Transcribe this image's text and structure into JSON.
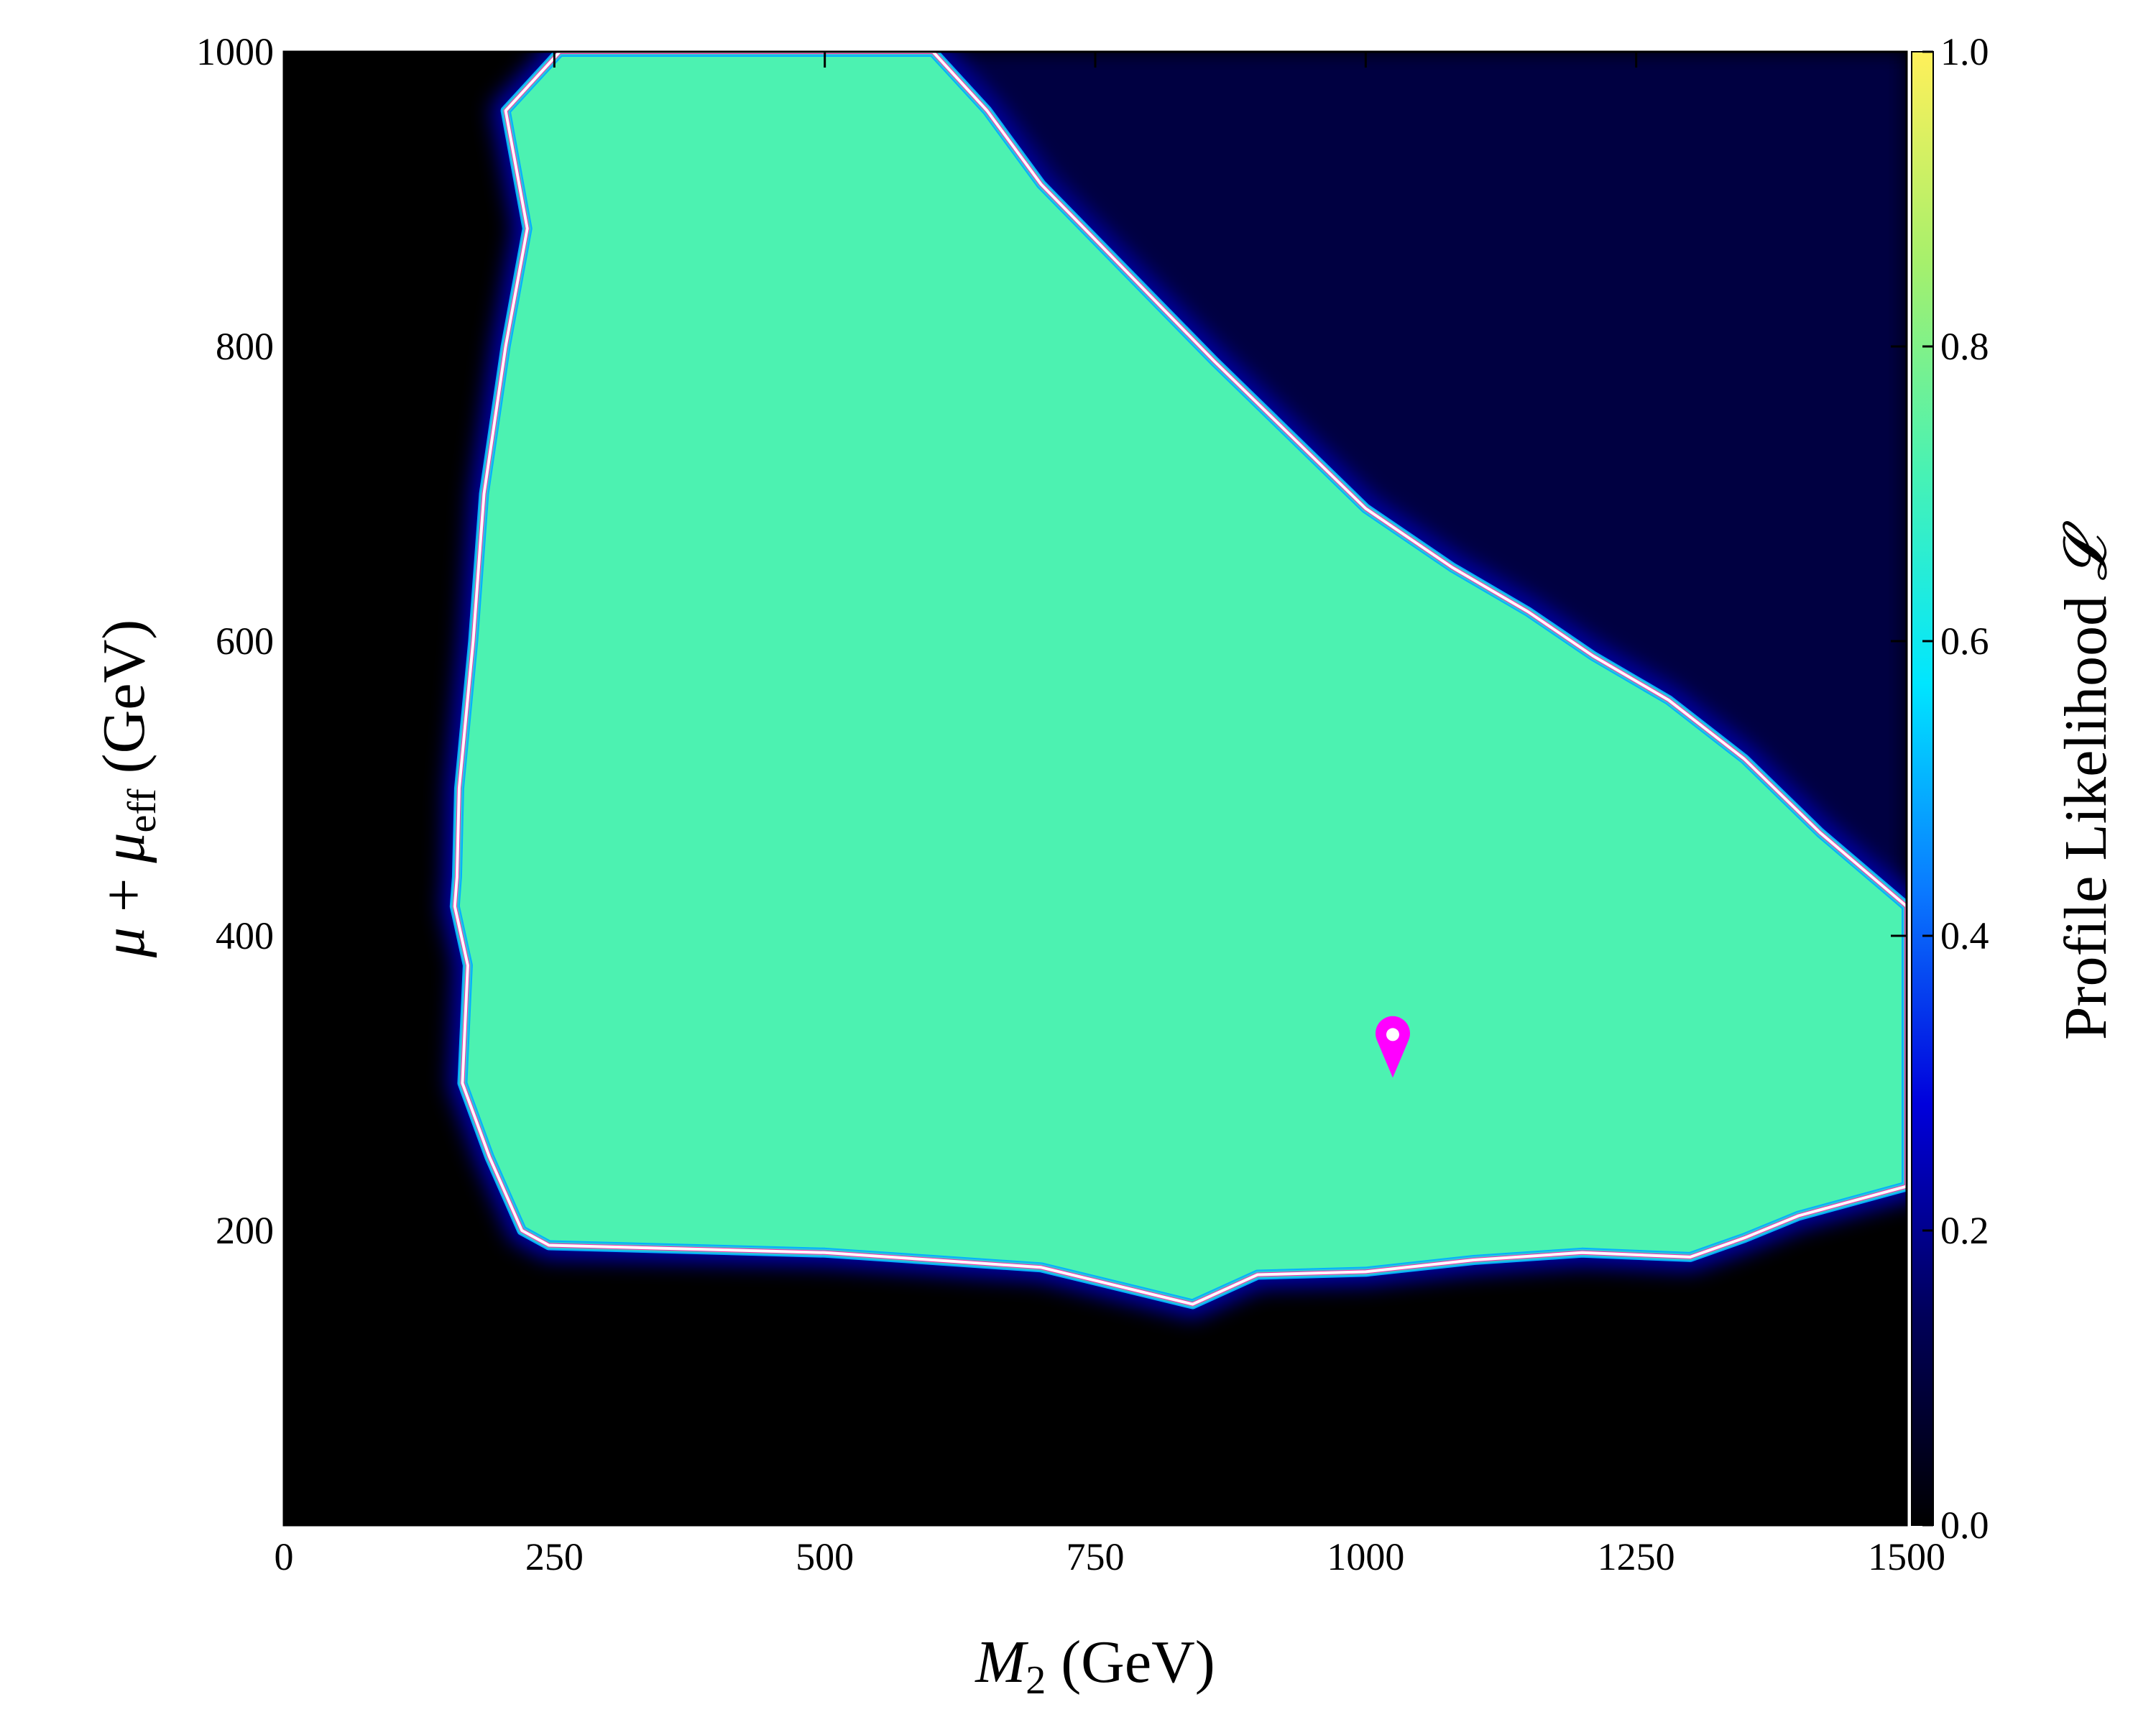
{
  "chart_data": {
    "type": "heatmap",
    "title": "",
    "xlabel": "M₂ (GeV)",
    "ylabel": "μ + μeff (GeV)",
    "colorbar_label": "Profile Likelihood 𝓛",
    "xlim": [
      0,
      1500
    ],
    "ylim": [
      0,
      1000
    ],
    "clim": [
      0.0,
      1.0
    ],
    "x_ticks": [
      "0",
      "250",
      "500",
      "750",
      "1000",
      "1250",
      "1500"
    ],
    "y_ticks": [
      "200",
      "400",
      "600",
      "800",
      "1000"
    ],
    "colorbar_ticks": [
      "0.0",
      "0.2",
      "0.4",
      "0.6",
      "0.8",
      "1.0"
    ],
    "colormap": [
      "#000000",
      "#00005a",
      "#0000dc",
      "#0a78ff",
      "#00e6ff",
      "#48f2b4",
      "#a6f06c",
      "#fff05a"
    ],
    "background_value": 0.0,
    "plateau_value": 0.72,
    "allowed_region_boundary": [
      [
        255,
        1000
      ],
      [
        205,
        960
      ],
      [
        225,
        880
      ],
      [
        205,
        800
      ],
      [
        185,
        700
      ],
      [
        175,
        600
      ],
      [
        162,
        500
      ],
      [
        160,
        440
      ],
      [
        158,
        420
      ],
      [
        170,
        380
      ],
      [
        165,
        300
      ],
      [
        190,
        250
      ],
      [
        220,
        200
      ],
      [
        245,
        190
      ],
      [
        500,
        185
      ],
      [
        600,
        180
      ],
      [
        700,
        175
      ],
      [
        840,
        150
      ],
      [
        900,
        170
      ],
      [
        1000,
        172
      ],
      [
        1100,
        180
      ],
      [
        1200,
        185
      ],
      [
        1300,
        182
      ],
      [
        1350,
        195
      ],
      [
        1400,
        210
      ],
      [
        1450,
        220
      ],
      [
        1500,
        230
      ],
      [
        1500,
        420
      ],
      [
        1420,
        470
      ],
      [
        1350,
        520
      ],
      [
        1280,
        560
      ],
      [
        1210,
        590
      ],
      [
        1150,
        620
      ],
      [
        1080,
        650
      ],
      [
        1000,
        690
      ],
      [
        930,
        740
      ],
      [
        860,
        790
      ],
      [
        780,
        850
      ],
      [
        700,
        910
      ],
      [
        650,
        960
      ],
      [
        600,
        1000
      ]
    ],
    "contours": [
      {
        "level": 0.61,
        "color": "#ff2ea8",
        "style": "solid"
      },
      {
        "level": 0.135,
        "color": "#ffffff",
        "style": "solid"
      }
    ],
    "best_fit_marker": {
      "x": 1025,
      "y": 332,
      "color": "#ff00ff"
    }
  }
}
